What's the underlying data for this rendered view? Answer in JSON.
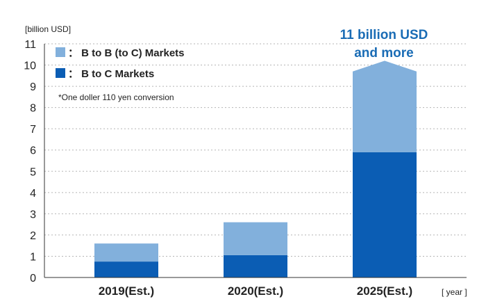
{
  "chart_data": {
    "type": "bar",
    "stacked": true,
    "categories": [
      "2019(Est.)",
      "2020(Est.)",
      "2025(Est.)"
    ],
    "series": [
      {
        "name": "B to C Markets",
        "values": [
          0.75,
          1.05,
          5.9
        ],
        "color": "#0b5db4"
      },
      {
        "name": "B to B (to C) Markets",
        "values": [
          0.85,
          1.55,
          3.8
        ],
        "color": "#82b0dc"
      }
    ],
    "arrow_peak_value": 10.2,
    "ylabel": "[billion USD]",
    "xlabel": "[ year ]",
    "ylim": [
      0,
      11
    ],
    "yticks": [
      0,
      1,
      2,
      3,
      4,
      5,
      6,
      7,
      8,
      9,
      10,
      11
    ],
    "grid": true,
    "legend_position": "top-left",
    "legend_labels": [
      "： B to B (to C) Markets",
      "： B to C Markets"
    ],
    "note": "*One doller 110 yen conversion",
    "annotation": [
      "11 billion USD",
      "and more"
    ]
  }
}
